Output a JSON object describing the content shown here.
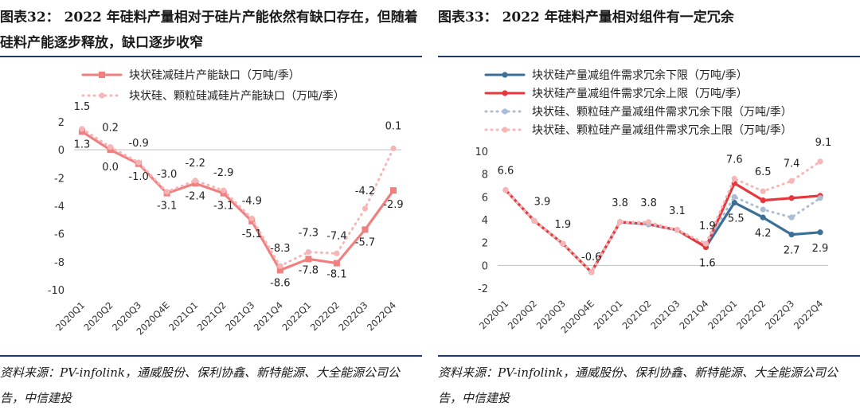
{
  "left": {
    "title": "图表32：  2022 年硅料产量相对于硅片产能依然有缺口存在，但随着硅料产能逐步释放，缺口逐步收窄",
    "source": "资料来源：PV-infolink，通威股份、保利协鑫、新特能源、大全能源公司公告，中信建投",
    "chart_data": {
      "type": "line",
      "categories": [
        "2020Q1",
        "2020Q2",
        "2020Q3",
        "2020Q4E",
        "2021Q1",
        "2021Q2",
        "2021Q3",
        "2021Q4",
        "2022Q1",
        "2022Q2",
        "2022Q3",
        "2022Q4"
      ],
      "ylim": [
        -10,
        2
      ],
      "yticks": [
        2,
        0,
        -2,
        -4,
        -6,
        -8,
        -10
      ],
      "series": [
        {
          "name": "块状硅减硅片产能缺口（万吨/季）",
          "color": "#f08080",
          "style": "solid",
          "values": [
            1.3,
            0.0,
            -1.0,
            -3.1,
            -2.4,
            -3.1,
            -5.1,
            -8.6,
            -7.8,
            -8.1,
            -5.7,
            -2.9
          ],
          "labels": [
            "1.3",
            "0.0",
            "-1.0",
            "-3.1",
            "-2.4",
            "-3.1",
            "-5.1",
            "-8.6",
            "-7.8",
            "-8.1",
            "-5.7",
            "-2.9"
          ]
        },
        {
          "name": "块状硅、颗粒硅减硅片产能缺口（万吨/季）",
          "color": "#f7b5b5",
          "style": "dotted",
          "values": [
            1.5,
            0.2,
            -0.9,
            -3.0,
            -2.2,
            -2.9,
            -4.9,
            -8.3,
            -7.3,
            -7.4,
            -4.2,
            0.1
          ],
          "labels": [
            "1.5",
            "0.2",
            "-0.9",
            "-3.0",
            "-2.2",
            "-2.9",
            "-4.9",
            "-8.3",
            "-7.3",
            "-7.4",
            "-4.2",
            "0.1"
          ]
        }
      ]
    }
  },
  "right": {
    "title": "图表33：  2022 年硅料产量相对组件有一定冗余",
    "source": "资料来源：PV-infolink，通威股份、保利协鑫、新特能源、大全能源公司公告，中信建投",
    "chart_data": {
      "type": "line",
      "categories": [
        "2020Q1",
        "2020Q2",
        "2020Q3",
        "2020Q4E",
        "2021Q1",
        "2021Q2",
        "2021Q3",
        "2021Q4",
        "2022Q1",
        "2022Q2",
        "2022Q3",
        "2022Q4"
      ],
      "ylim": [
        -2,
        10
      ],
      "yticks": [
        10,
        8,
        6,
        4,
        2,
        0,
        -2
      ],
      "series": [
        {
          "name": "块状硅产量减组件需求冗余下限（万吨/季）",
          "color": "#3a6f98",
          "style": "solid",
          "values": [
            6.6,
            3.9,
            1.9,
            -0.6,
            3.8,
            3.6,
            3.1,
            1.6,
            5.5,
            4.2,
            2.7,
            2.9
          ]
        },
        {
          "name": "块状硅产量减组件需求冗余上限（万吨/季）",
          "color": "#e8373c",
          "style": "solid",
          "values": [
            6.6,
            3.9,
            1.9,
            -0.6,
            3.8,
            3.6,
            3.1,
            1.6,
            7.2,
            5.7,
            5.9,
            6.1
          ]
        },
        {
          "name": "块状硅、颗粒硅产量减组件需求冗余下限（万吨/季）",
          "color": "#a9bed4",
          "style": "dotted",
          "values": [
            6.6,
            3.9,
            1.9,
            -0.6,
            3.8,
            3.6,
            3.1,
            1.9,
            6.0,
            4.9,
            4.2,
            5.9
          ]
        },
        {
          "name": "块状硅、颗粒硅产量减组件需求冗余上限（万吨/季）",
          "color": "#f7b5b5",
          "style": "dotted",
          "values": [
            6.6,
            3.9,
            1.9,
            -0.6,
            3.8,
            3.8,
            3.1,
            1.9,
            7.6,
            6.5,
            7.4,
            9.1
          ]
        }
      ],
      "annotations": [
        {
          "text": "6.6",
          "cat": 0,
          "y": 6.6
        },
        {
          "text": "3.9",
          "cat": 1,
          "y": 3.9
        },
        {
          "text": "1.9",
          "cat": 2,
          "y": 1.9
        },
        {
          "text": "-0.6",
          "cat": 3,
          "y": -0.6
        },
        {
          "text": "3.8",
          "cat": 4,
          "y": 3.8
        },
        {
          "text": "3.8",
          "cat": 5,
          "y": 3.8
        },
        {
          "text": "3.1",
          "cat": 6,
          "y": 3.1
        },
        {
          "text": "1.9",
          "cat": 7,
          "y": 1.9
        },
        {
          "text": "1.6",
          "cat": 7,
          "y": 1.6
        },
        {
          "text": "7.6",
          "cat": 8,
          "y": 7.6
        },
        {
          "text": "5.5",
          "cat": 8,
          "y": 5.5
        },
        {
          "text": "6.5",
          "cat": 9,
          "y": 6.5
        },
        {
          "text": "4.2",
          "cat": 9,
          "y": 4.2
        },
        {
          "text": "7.4",
          "cat": 10,
          "y": 7.4
        },
        {
          "text": "2.7",
          "cat": 10,
          "y": 2.7
        },
        {
          "text": "9.1",
          "cat": 11,
          "y": 9.1
        },
        {
          "text": "2.9",
          "cat": 11,
          "y": 2.9
        }
      ]
    }
  }
}
